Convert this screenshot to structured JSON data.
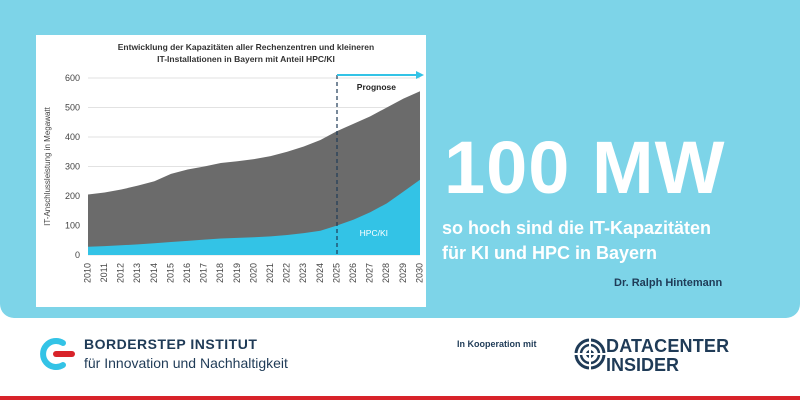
{
  "hero": {
    "big_number": "100 MW",
    "subtitle_line1": "so hoch sind die IT-Kapazitäten",
    "subtitle_line2": "für KI und HPC in Bayern",
    "author": "Dr. Ralph Hintemann",
    "background_color": "#7dd4e8"
  },
  "footer": {
    "institute_name": "BORDERSTEP INSTITUT",
    "institute_tagline": "für Innovation und Nachhaltigkeit",
    "cooperation_label": "In Kooperation mit",
    "partner_line1": "DATACENTER",
    "partner_line2": "INSIDER",
    "accent_color": "#d8232a",
    "text_color": "#1f3b57"
  },
  "chart_data": {
    "type": "area",
    "title_line1": "Entwicklung der Kapazitäten aller Rechenzentren und kleineren",
    "title_line2": "IT-Installationen in Bayern mit Anteil HPC/KI",
    "ylabel": "IT-Anschlussleistung in Megawatt",
    "xlabel": "",
    "ylim": [
      0,
      600
    ],
    "yticks": [
      0,
      100,
      200,
      300,
      400,
      500,
      600
    ],
    "x": [
      "2010",
      "2011",
      "2012",
      "2013",
      "2014",
      "2015",
      "2016",
      "2017",
      "2018",
      "2019",
      "2020",
      "2021",
      "2022",
      "2023",
      "2024",
      "2025",
      "2026",
      "2027",
      "2028",
      "2029",
      "2030"
    ],
    "series": [
      {
        "values": [
          205,
          212,
          222,
          235,
          250,
          275,
          290,
          300,
          312,
          318,
          325,
          335,
          350,
          368,
          390,
          420,
          445,
          470,
          500,
          530,
          555
        ],
        "color": "#6b6b6b"
      },
      {
        "name": "HPC/KI",
        "values": [
          28,
          30,
          33,
          36,
          40,
          44,
          48,
          52,
          56,
          58,
          60,
          63,
          68,
          74,
          82,
          100,
          120,
          145,
          175,
          215,
          255
        ],
        "color": "#33c3e6"
      }
    ],
    "forecast_start": "2025",
    "forecast_label": "Prognose",
    "grid": true,
    "legend": "none"
  }
}
